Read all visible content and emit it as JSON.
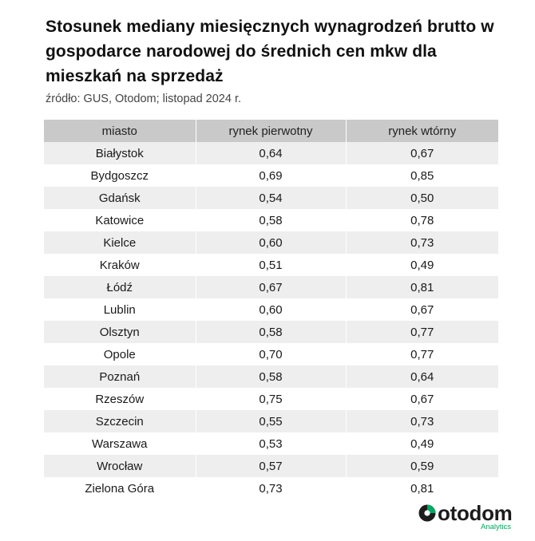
{
  "title": "Stosunek mediany miesięcznych wynagrodzeń brutto w gospodarce narodowej do średnich cen mkw dla mieszkań na sprzedaż",
  "source": "źródło: GUS, Otodom; listopad 2024 r.",
  "colors": {
    "header_bg": "#c9c9c9",
    "row_alt_bg": "#eeeeee",
    "brand_green": "#00a862",
    "brand_dark": "#1c1c1c"
  },
  "chart_data": {
    "type": "table",
    "title": "Stosunek mediany miesięcznych wynagrodzeń brutto w gospodarce narodowej do średnich cen mkw dla mieszkań na sprzedaż",
    "subtitle": "źródło: GUS, Otodom; listopad 2024 r.",
    "columns": [
      "miasto",
      "rynek pierwotny",
      "rynek wtórny"
    ],
    "rows": [
      [
        "Białystok",
        "0,64",
        "0,67"
      ],
      [
        "Bydgoszcz",
        "0,69",
        "0,85"
      ],
      [
        "Gdańsk",
        "0,54",
        "0,50"
      ],
      [
        "Katowice",
        "0,58",
        "0,78"
      ],
      [
        "Kielce",
        "0,60",
        "0,73"
      ],
      [
        "Kraków",
        "0,51",
        "0,49"
      ],
      [
        "Łódź",
        "0,67",
        "0,81"
      ],
      [
        "Lublin",
        "0,60",
        "0,67"
      ],
      [
        "Olsztyn",
        "0,58",
        "0,77"
      ],
      [
        "Opole",
        "0,70",
        "0,77"
      ],
      [
        "Poznań",
        "0,58",
        "0,64"
      ],
      [
        "Rzeszów",
        "0,75",
        "0,67"
      ],
      [
        "Szczecin",
        "0,55",
        "0,73"
      ],
      [
        "Warszawa",
        "0,53",
        "0,49"
      ],
      [
        "Wrocław",
        "0,57",
        "0,59"
      ],
      [
        "Zielona Góra",
        "0,73",
        "0,81"
      ]
    ]
  },
  "logo": {
    "name": "otodom",
    "sub": "Analytics",
    "icon": "otodom-logo-icon"
  }
}
